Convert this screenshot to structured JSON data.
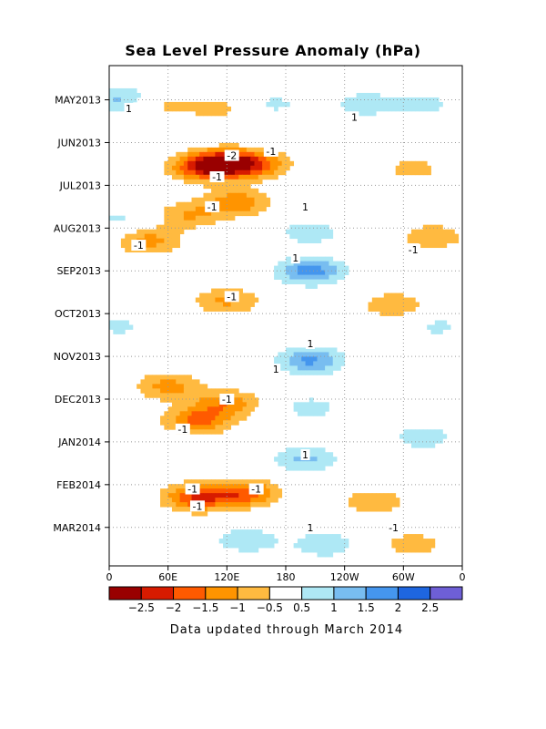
{
  "chart_data": {
    "type": "heatmap",
    "title": "Sea Level Pressure Anomaly (hPa)",
    "footer": "Data updated through March 2014",
    "x_ticks": [
      {
        "lon": 0,
        "label": "0"
      },
      {
        "lon": 60,
        "label": "60E"
      },
      {
        "lon": 120,
        "label": "120E"
      },
      {
        "lon": 180,
        "label": "180"
      },
      {
        "lon": 240,
        "label": "120W"
      },
      {
        "lon": 300,
        "label": "60W"
      },
      {
        "lon": 360,
        "label": "0"
      }
    ],
    "x_range": [
      0,
      360
    ],
    "y_range_months": [
      0,
      11.7
    ],
    "y_ticks": [
      {
        "month": 0.8,
        "label": "MAY2013"
      },
      {
        "month": 1.8,
        "label": "JUN2013"
      },
      {
        "month": 2.8,
        "label": "JUL2013"
      },
      {
        "month": 3.8,
        "label": "AUG2013"
      },
      {
        "month": 4.8,
        "label": "SEP2013"
      },
      {
        "month": 5.8,
        "label": "OCT2013"
      },
      {
        "month": 6.8,
        "label": "NOV2013"
      },
      {
        "month": 7.8,
        "label": "DEC2013"
      },
      {
        "month": 8.8,
        "label": "JAN2014"
      },
      {
        "month": 9.8,
        "label": "FEB2014"
      },
      {
        "month": 10.8,
        "label": "MAR2014"
      }
    ],
    "colorbar": {
      "levels": [
        -2.5,
        -2,
        -1.5,
        -1,
        -0.5,
        0.5,
        1,
        1.5,
        2,
        2.5
      ],
      "labels": [
        "−2.5",
        "−2",
        "−1.5",
        "−1",
        "−0.5",
        "0.5",
        "1",
        "1.5",
        "2",
        "2.5"
      ],
      "colors": [
        "#990000",
        "#d71b00",
        "#ff5a00",
        "#ff9400",
        "#ffba40",
        "#ffffff",
        "#aee8f5",
        "#78bdf0",
        "#4596ee",
        "#1e66e0",
        "#6e5fd6"
      ]
    },
    "anomaly_regions": [
      {
        "lon": 45,
        "month": 0.9,
        "value": -0.8
      },
      {
        "lon": 110,
        "month": 1.0,
        "value": -0.7
      },
      {
        "lon": 15,
        "month": 0.8,
        "value": 1.3
      },
      {
        "lon": 260,
        "month": 0.9,
        "value": 0.8
      },
      {
        "lon": 168,
        "month": 0.9,
        "value": 0.6
      },
      {
        "lon": 320,
        "month": 0.9,
        "value": 0.7
      },
      {
        "lon": 115,
        "month": 2.3,
        "value": -2.6
      },
      {
        "lon": 150,
        "month": 2.3,
        "value": -1.5
      },
      {
        "lon": 90,
        "month": 2.4,
        "value": -1.2
      },
      {
        "lon": 310,
        "month": 2.4,
        "value": -0.7
      },
      {
        "lon": 130,
        "month": 3.2,
        "value": -1.4
      },
      {
        "lon": 80,
        "month": 3.5,
        "value": -1.0
      },
      {
        "lon": 205,
        "month": 3.9,
        "value": 0.8
      },
      {
        "lon": 40,
        "month": 4.1,
        "value": -1.2
      },
      {
        "lon": 330,
        "month": 4.0,
        "value": -0.9
      },
      {
        "lon": 205,
        "month": 4.8,
        "value": 1.8
      },
      {
        "lon": 120,
        "month": 5.5,
        "value": -1.1
      },
      {
        "lon": 290,
        "month": 5.6,
        "value": -0.9
      },
      {
        "lon": 205,
        "month": 6.9,
        "value": 1.6
      },
      {
        "lon": 60,
        "month": 7.5,
        "value": -1.2
      },
      {
        "lon": 120,
        "month": 7.9,
        "value": -1.3
      },
      {
        "lon": 90,
        "month": 8.3,
        "value": -1.6
      },
      {
        "lon": 205,
        "month": 8.0,
        "value": 0.7
      },
      {
        "lon": 200,
        "month": 9.2,
        "value": 1.1
      },
      {
        "lon": 320,
        "month": 8.7,
        "value": 0.8
      },
      {
        "lon": 90,
        "month": 10.1,
        "value": -2.0
      },
      {
        "lon": 140,
        "month": 10.0,
        "value": -1.7
      },
      {
        "lon": 270,
        "month": 10.2,
        "value": -0.9
      },
      {
        "lon": 140,
        "month": 11.1,
        "value": 0.9
      },
      {
        "lon": 220,
        "month": 11.2,
        "value": 0.9
      },
      {
        "lon": 310,
        "month": 11.2,
        "value": -0.8
      },
      {
        "lon": 10,
        "month": 6.1,
        "value": 0.6
      },
      {
        "lon": 335,
        "month": 6.1,
        "value": 0.6
      },
      {
        "lon": 10,
        "month": 3.6,
        "value": 0.6
      }
    ],
    "contour_labels": [
      {
        "lon": 20,
        "month": 1.0,
        "text": "1"
      },
      {
        "lon": 250,
        "month": 1.2,
        "text": "1"
      },
      {
        "lon": 125,
        "month": 2.1,
        "text": "-2"
      },
      {
        "lon": 165,
        "month": 2.0,
        "text": "-1"
      },
      {
        "lon": 110,
        "month": 2.6,
        "text": "-1"
      },
      {
        "lon": 105,
        "month": 3.3,
        "text": "-1"
      },
      {
        "lon": 200,
        "month": 3.3,
        "text": "1"
      },
      {
        "lon": 30,
        "month": 4.2,
        "text": "-1"
      },
      {
        "lon": 190,
        "month": 4.5,
        "text": "1"
      },
      {
        "lon": 310,
        "month": 4.3,
        "text": "-1"
      },
      {
        "lon": 125,
        "month": 5.4,
        "text": "-1"
      },
      {
        "lon": 205,
        "month": 6.5,
        "text": "1"
      },
      {
        "lon": 170,
        "month": 7.1,
        "text": "1"
      },
      {
        "lon": 120,
        "month": 7.8,
        "text": "-1"
      },
      {
        "lon": 75,
        "month": 8.5,
        "text": "-1"
      },
      {
        "lon": 200,
        "month": 9.1,
        "text": "1"
      },
      {
        "lon": 85,
        "month": 9.9,
        "text": "-1"
      },
      {
        "lon": 150,
        "month": 9.9,
        "text": "-1"
      },
      {
        "lon": 90,
        "month": 10.3,
        "text": "-1"
      },
      {
        "lon": 205,
        "month": 10.8,
        "text": "1"
      },
      {
        "lon": 290,
        "month": 10.8,
        "text": "-1"
      }
    ]
  }
}
